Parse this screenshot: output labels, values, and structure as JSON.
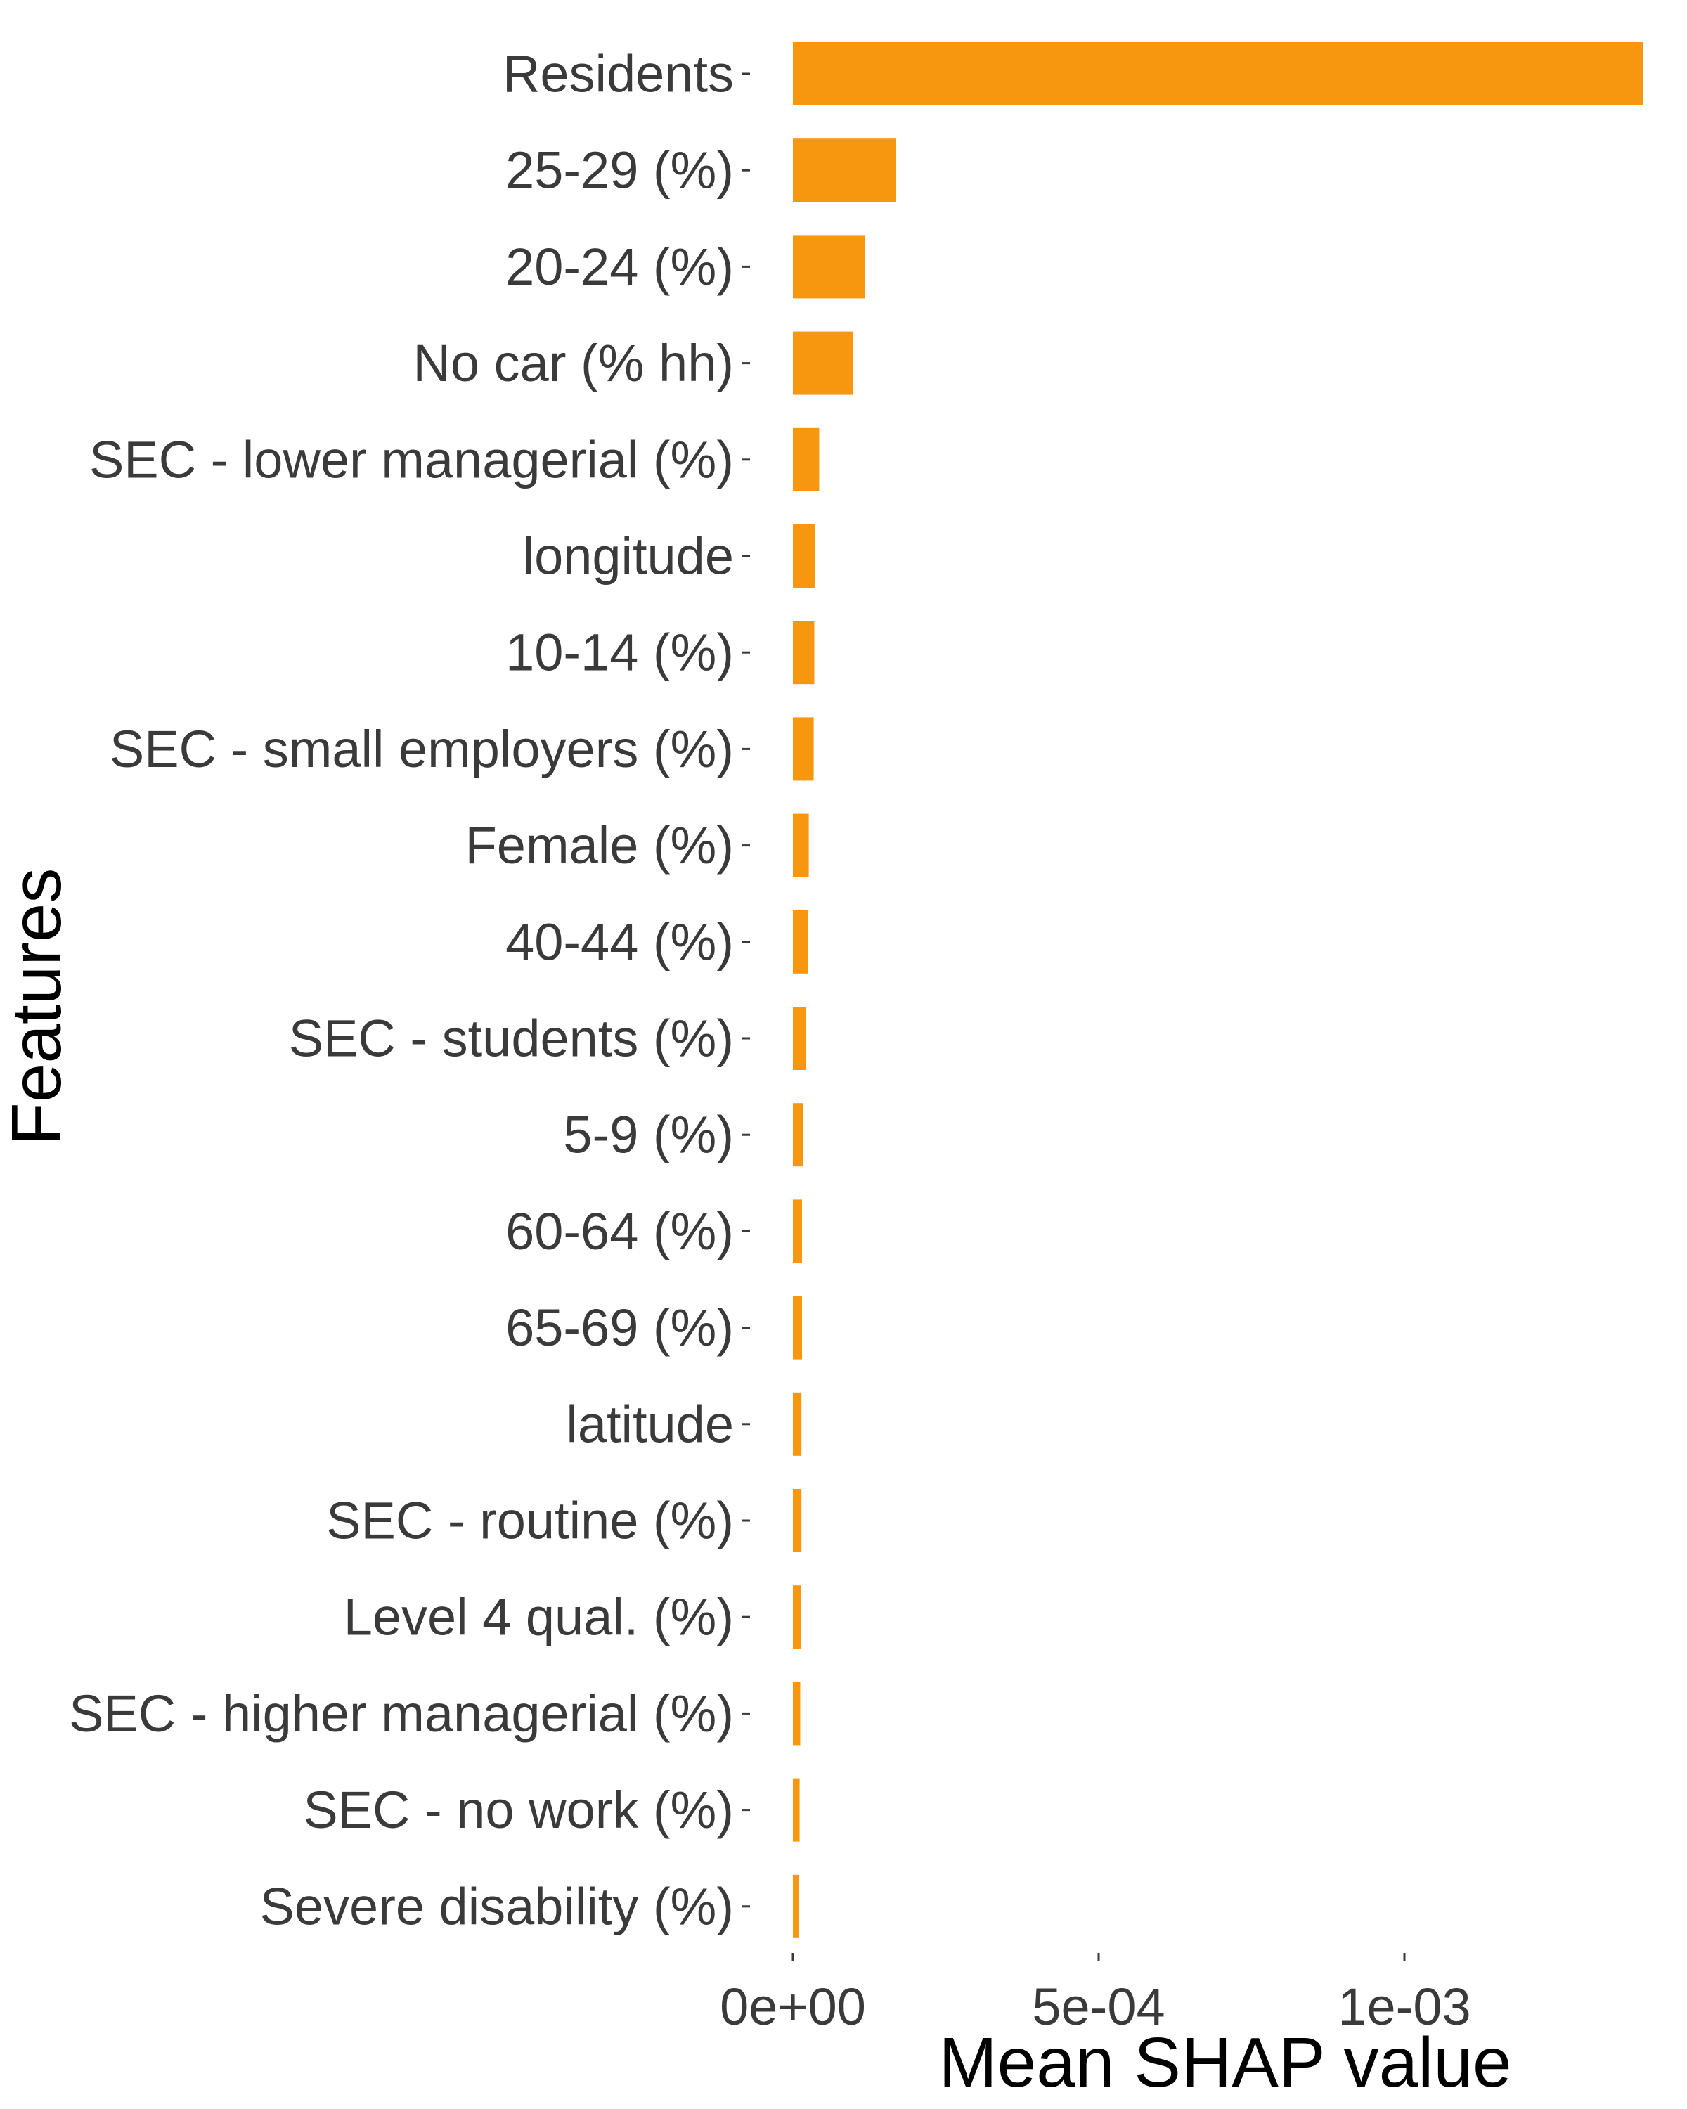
{
  "chart_data": {
    "type": "bar",
    "orientation": "horizontal",
    "title": "",
    "xlabel": "Mean SHAP value",
    "ylabel": "Features",
    "xlim": [
      0,
      0.00142
    ],
    "x_ticks": [
      {
        "value": 0,
        "label": "0e+00"
      },
      {
        "value": 0.0005,
        "label": "5e-04"
      },
      {
        "value": 0.001,
        "label": "1e-03"
      }
    ],
    "grid": false,
    "legend": "none",
    "bar_color": "#F7960F",
    "categories": [
      "Residents",
      "25-29 (%)",
      "20-24 (%)",
      "No car (% hh)",
      "SEC - lower managerial (%)",
      "longitude",
      "10-14 (%)",
      "SEC - small employers (%)",
      "Female (%)",
      "40-44 (%)",
      "SEC - students (%)",
      "5-9 (%)",
      "60-64 (%)",
      "65-69 (%)",
      "latitude",
      "SEC - routine (%)",
      "Level 4 qual. (%)",
      "SEC - higher managerial (%)",
      "SEC - no work (%)",
      "Severe disability (%)"
    ],
    "values": [
      0.00139,
      0.000168,
      0.000118,
      9.8e-05,
      4.3e-05,
      3.6e-05,
      3.5e-05,
      3.4e-05,
      2.6e-05,
      2.5e-05,
      2.1e-05,
      1.7e-05,
      1.5e-05,
      1.5e-05,
      1.4e-05,
      1.4e-05,
      1.3e-05,
      1.2e-05,
      1.1e-05,
      1e-05
    ]
  }
}
